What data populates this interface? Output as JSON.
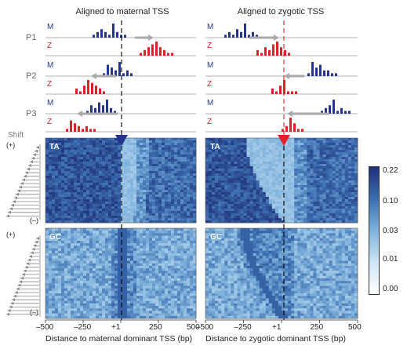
{
  "panels": {
    "left_title": "Aligned to maternal TSS",
    "right_title": "Aligned to zygotic TSS",
    "left_xlabel": "Distance to maternal dominant TSS (bp)",
    "right_xlabel": "Distance to zygotic dominant TSS (bp)"
  },
  "rows": [
    "P1",
    "P2",
    "P3"
  ],
  "track_labels": {
    "m": "M",
    "z": "Z"
  },
  "shift": {
    "label": "Shift",
    "plus": "(+)",
    "minus": "(–)"
  },
  "heatmaps": {
    "ta": "TA",
    "gc": "GC"
  },
  "x_ticks": [
    "–500",
    "–250",
    "+1",
    "250",
    "500"
  ],
  "colorbar": {
    "ticks": [
      "0.22",
      "0.10",
      "0.03",
      "0.01",
      "0.00"
    ],
    "colors": [
      "#1f2f78",
      "#3c6db0",
      "#7fb2dc",
      "#cfe6f5",
      "#ffffff"
    ]
  },
  "colors": {
    "maternal": "#25348c",
    "zygotic": "#e0202a",
    "arrow": "#aaaaaa"
  },
  "chart_data": {
    "type": "heatmap",
    "title": "",
    "xlabel": "Distance to dominant TSS (bp)",
    "x_ticks": [
      -500,
      -250,
      1,
      250,
      500
    ],
    "color_scale": [
      0.0,
      0.01,
      0.03,
      0.1,
      0.22
    ],
    "promoters": {
      "P1": {
        "maternal_aligned": {
          "M": [
            1,
            2,
            3,
            2,
            1,
            5,
            2,
            1,
            1
          ],
          "Z": [
            1,
            2,
            3,
            4,
            5,
            3,
            2,
            1,
            1
          ]
        },
        "zygotic_aligned": {
          "M": [
            1,
            2,
            1,
            3,
            2,
            5,
            1,
            2,
            1
          ],
          "Z": [
            2,
            1,
            3,
            2,
            4,
            5,
            3,
            2,
            1
          ]
        }
      },
      "P2": {
        "maternal_aligned": {
          "M": [
            1,
            4,
            3,
            2,
            5,
            1,
            2,
            1
          ],
          "Z": [
            2,
            1,
            3,
            5,
            4,
            3,
            2,
            1
          ]
        },
        "zygotic_aligned": {
          "M": [
            1,
            5,
            3,
            4,
            2,
            2,
            1,
            1
          ],
          "Z": [
            2,
            1,
            3,
            5,
            1,
            1,
            1
          ]
        }
      },
      "P3": {
        "maternal_aligned": {
          "M": [
            1,
            3,
            2,
            4,
            3,
            5,
            2,
            1
          ],
          "Z": [
            1,
            4,
            3,
            2,
            1,
            2,
            1,
            1
          ]
        },
        "zygotic_aligned": {
          "M": [
            1,
            2,
            3,
            5,
            1,
            2,
            1,
            1
          ],
          "Z": [
            1,
            2,
            5,
            3,
            1,
            1
          ]
        }
      }
    }
  }
}
